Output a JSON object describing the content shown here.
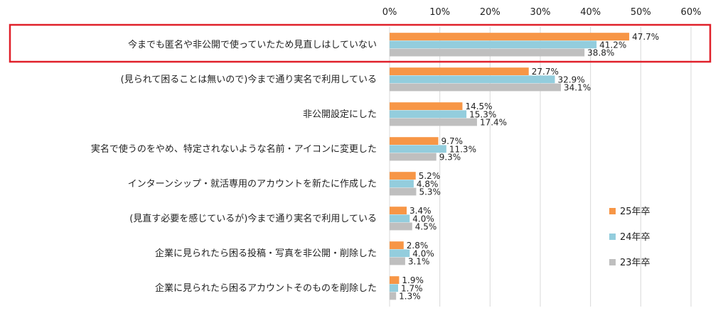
{
  "chart_data": {
    "type": "bar",
    "orientation": "horizontal",
    "title": "",
    "xlabel": "",
    "ylabel": "",
    "xlim": [
      0,
      60
    ],
    "x_ticks": [
      0,
      10,
      20,
      30,
      40,
      50,
      60
    ],
    "x_tick_labels": [
      "0%",
      "10%",
      "20%",
      "30%",
      "40%",
      "50%",
      "60%"
    ],
    "grid": "vertical",
    "legend_position": "right",
    "categories": [
      "今までも匿名や非公開で使っていたため見直しはしていない",
      "(見られて困ることは無いので)今まで通り実名で利用している",
      "非公開設定にした",
      "実名で使うのをやめ、特定されないような名前・アイコンに変更した",
      "インターンシップ・就活専用のアカウントを新たに作成した",
      "(見直す必要を感じているが)今まで通り実名で利用している",
      "企業に見られたら困る投稿・写真を非公開・削除した",
      "企業に見られたら困るアカウントそのものを削除した"
    ],
    "series": [
      {
        "name": "25年卒",
        "color": "#F79646",
        "values": [
          47.7,
          27.7,
          14.5,
          9.7,
          5.2,
          3.4,
          2.8,
          1.9
        ]
      },
      {
        "name": "24年卒",
        "color": "#93CDDD",
        "values": [
          41.2,
          32.9,
          15.3,
          11.3,
          4.8,
          4.0,
          4.0,
          1.7
        ]
      },
      {
        "name": "23年卒",
        "color": "#BFBFBF",
        "values": [
          38.8,
          34.1,
          17.4,
          9.3,
          5.3,
          4.5,
          3.1,
          1.3
        ]
      }
    ],
    "highlighted_category": "今までも匿名や非公開で使っていたため見直しはしていない",
    "highlight_color": "#E0202A",
    "value_suffix": "%"
  }
}
